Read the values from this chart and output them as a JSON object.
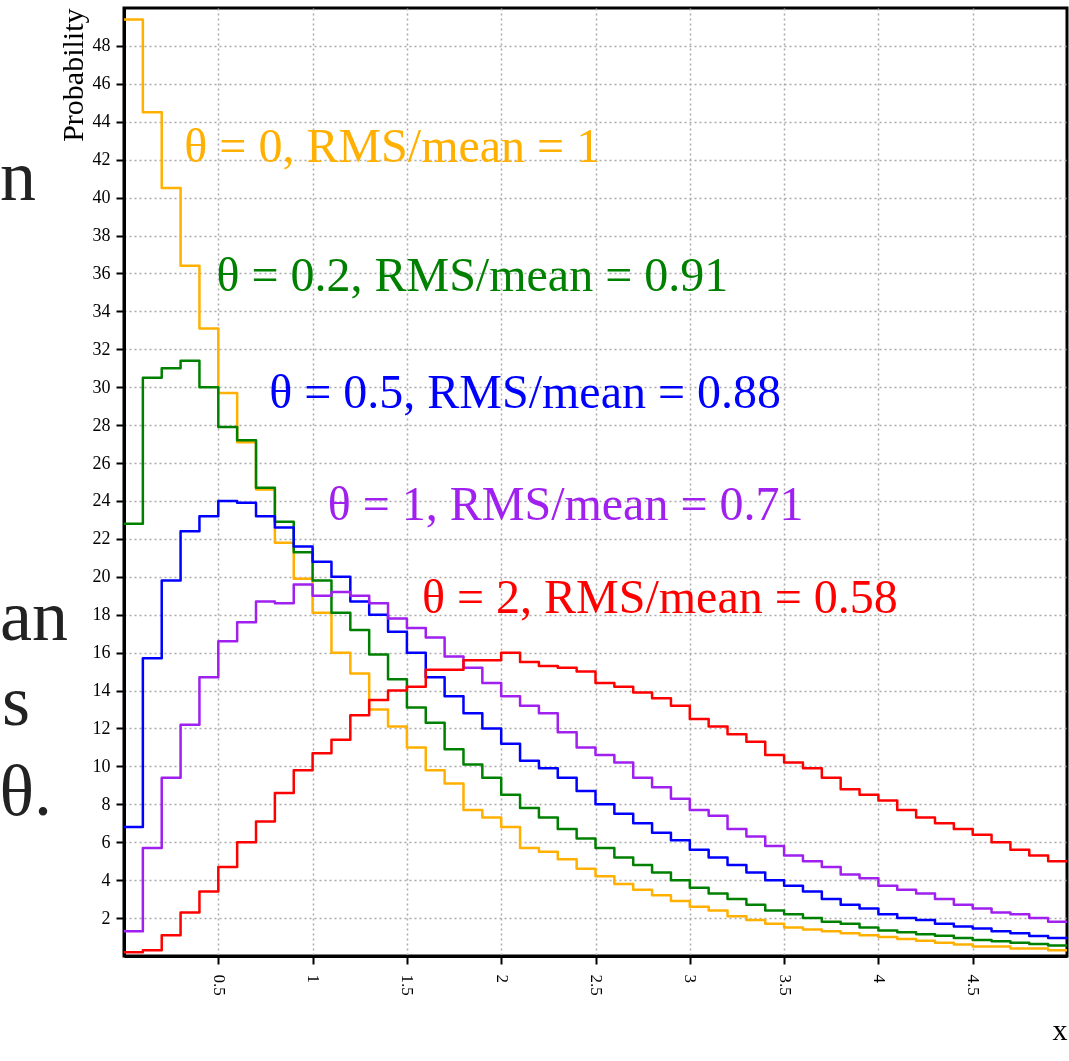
{
  "chart_data": {
    "type": "histogram",
    "xlabel": "x",
    "ylabel": "Probability",
    "bins": [
      0,
      0.1,
      0.2,
      0.3,
      0.4,
      0.5,
      0.6,
      0.7,
      0.8,
      0.9,
      1,
      1.1,
      1.2,
      1.3,
      1.4,
      1.5,
      1.6,
      1.7,
      1.8,
      1.9,
      2,
      2.1,
      2.2,
      2.3,
      2.4,
      2.5,
      2.6,
      2.7,
      2.8,
      2.9,
      3,
      3.1,
      3.2,
      3.3,
      3.4,
      3.5,
      3.6,
      3.7,
      3.8,
      3.9,
      4,
      4.1,
      4.2,
      4.3,
      4.4,
      4.5,
      4.6,
      4.7,
      4.8,
      4.9,
      5
    ],
    "series": [
      {
        "name": "θ = 0, RMS/mean = 1",
        "color": "#ffb000",
        "values": [
          49.4,
          44.5,
          40.5,
          36.4,
          33.1,
          29.7,
          27.1,
          24.6,
          21.8,
          19.9,
          18.1,
          16.0,
          14.9,
          13.0,
          12.1,
          11.0,
          9.8,
          9.1,
          7.7,
          7.3,
          6.8,
          5.7,
          5.5,
          5.1,
          4.6,
          4.2,
          3.8,
          3.5,
          3.2,
          2.9,
          2.6,
          2.4,
          2.1,
          1.9,
          1.7,
          1.5,
          1.4,
          1.3,
          1.2,
          1.1,
          1.0,
          0.9,
          0.8,
          0.7,
          0.6,
          0.5,
          0.5,
          0.4,
          0.4,
          0.3
        ]
      },
      {
        "name": "θ = 0.2, RMS/mean = 0.91",
        "color": "#008000",
        "values": [
          22.8,
          30.5,
          31.0,
          31.4,
          30.0,
          27.9,
          27.2,
          24.7,
          22.9,
          21.3,
          19.8,
          18.1,
          17.2,
          15.9,
          14.6,
          13.1,
          12.3,
          10.9,
          10.1,
          9.4,
          8.5,
          7.8,
          7.3,
          6.7,
          6.2,
          5.7,
          5.2,
          4.8,
          4.4,
          4.0,
          3.6,
          3.3,
          3.0,
          2.7,
          2.4,
          2.2,
          2.0,
          1.8,
          1.7,
          1.5,
          1.35,
          1.25,
          1.15,
          1.07,
          0.95,
          0.85,
          0.78,
          0.7,
          0.63,
          0.55
        ]
      },
      {
        "name": "θ = 0.5, RMS/mean = 0.88",
        "color": "#0000ff",
        "values": [
          6.8,
          15.7,
          19.8,
          22.4,
          23.2,
          24.0,
          23.9,
          23.2,
          22.6,
          21.6,
          20.8,
          20.0,
          18.7,
          18.0,
          17.1,
          16.0,
          14.7,
          13.7,
          12.8,
          12.0,
          11.2,
          10.3,
          9.9,
          9.4,
          8.7,
          8.0,
          7.5,
          7.0,
          6.5,
          6.1,
          5.6,
          5.2,
          4.8,
          4.4,
          4.0,
          3.7,
          3.4,
          3.0,
          2.7,
          2.5,
          2.2,
          2.0,
          1.9,
          1.7,
          1.55,
          1.45,
          1.3,
          1.2,
          1.05,
          0.95
        ]
      },
      {
        "name": "θ = 1, RMS/mean = 0.71",
        "color": "#a020f0",
        "values": [
          1.3,
          5.7,
          9.4,
          12.2,
          14.7,
          16.6,
          17.6,
          18.7,
          18.6,
          19.6,
          19.0,
          19.2,
          19.0,
          18.6,
          17.8,
          17.3,
          16.8,
          15.8,
          15.2,
          14.4,
          13.7,
          13.2,
          12.8,
          11.8,
          11.0,
          10.6,
          10.2,
          9.4,
          8.9,
          8.3,
          7.7,
          7.4,
          6.7,
          6.3,
          5.8,
          5.3,
          5.0,
          4.7,
          4.3,
          4.1,
          3.7,
          3.5,
          3.3,
          3.0,
          2.7,
          2.5,
          2.3,
          2.2,
          2.0,
          1.8
        ]
      },
      {
        "name": "θ = 2, RMS/mean = 0.58",
        "color": "#ff0000",
        "values": [
          0.2,
          0.3,
          1.1,
          2.3,
          3.4,
          4.7,
          6.0,
          7.1,
          8.6,
          9.8,
          10.7,
          11.4,
          12.7,
          13.5,
          14.0,
          14.2,
          15.1,
          15.1,
          15.6,
          15.6,
          16.0,
          15.5,
          15.3,
          15.2,
          15.0,
          14.4,
          14.2,
          13.9,
          13.6,
          13.2,
          12.5,
          12.1,
          11.7,
          11.3,
          10.6,
          10.2,
          9.9,
          9.4,
          8.8,
          8.5,
          8.2,
          7.7,
          7.3,
          7.0,
          6.7,
          6.4,
          6.0,
          5.6,
          5.3,
          5.0
        ]
      }
    ],
    "xlim": [
      0,
      5
    ],
    "xticks": [
      0.5,
      1,
      1.5,
      2,
      2.5,
      3,
      3.5,
      4,
      4.5
    ],
    "ylim": [
      0,
      50
    ],
    "yticks": [
      2,
      4,
      6,
      8,
      10,
      12,
      14,
      16,
      18,
      20,
      22,
      24,
      26,
      28,
      30,
      32,
      34,
      36,
      38,
      40,
      42,
      44,
      46,
      48
    ],
    "grid": true,
    "legend": false,
    "annotations": [
      "n",
      "an",
      "s",
      "θ."
    ]
  }
}
